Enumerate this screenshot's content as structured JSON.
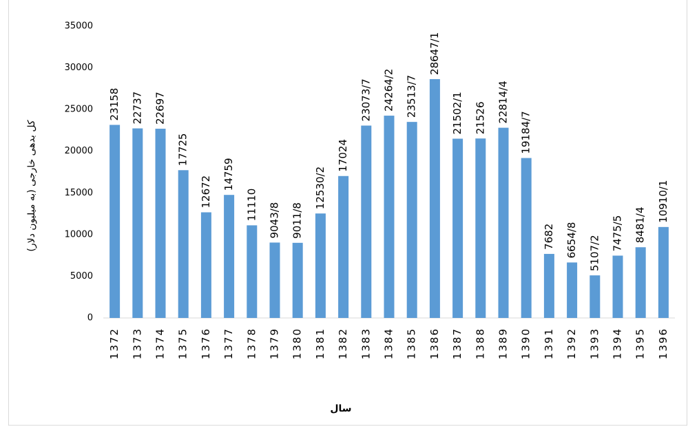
{
  "chart_data": {
    "type": "bar",
    "y_axis_label": "کل بدهی خارجی (به میلیون دلار)",
    "x_axis_label": "سال",
    "categories": [
      "1372",
      "1373",
      "1374",
      "1375",
      "1376",
      "1377",
      "1378",
      "1379",
      "1380",
      "1381",
      "1382",
      "1383",
      "1384",
      "1385",
      "1386",
      "1387",
      "1388",
      "1389",
      "1390",
      "1391",
      "1392",
      "1393",
      "1394",
      "1395",
      "1396"
    ],
    "values": [
      23158,
      22737,
      22697,
      17725,
      12672,
      14759,
      11110,
      9043.8,
      9011.8,
      12530.2,
      17024,
      23073.7,
      24264.2,
      23513.7,
      28647.1,
      21502.1,
      21526,
      22814.4,
      19184.7,
      7682,
      6654.8,
      5107.2,
      7475.5,
      8481.4,
      10910.1
    ],
    "value_labels": [
      "23158",
      "22737",
      "22697",
      "17725",
      "12672",
      "14759",
      "11110",
      "9043/8",
      "9011/8",
      "12530/2",
      "17024",
      "23073/7",
      "24264/2",
      "23513/7",
      "28647/1",
      "21502/1",
      "21526",
      "22814/4",
      "19184/7",
      "7682",
      "6654/8",
      "5107/2",
      "7475/5",
      "8481/4",
      "10910/1"
    ],
    "color": "#5b9bd5",
    "ylim": [
      0,
      35000
    ],
    "yticks": [
      0,
      5000,
      10000,
      15000,
      20000,
      25000,
      30000,
      35000
    ],
    "grid": false
  }
}
